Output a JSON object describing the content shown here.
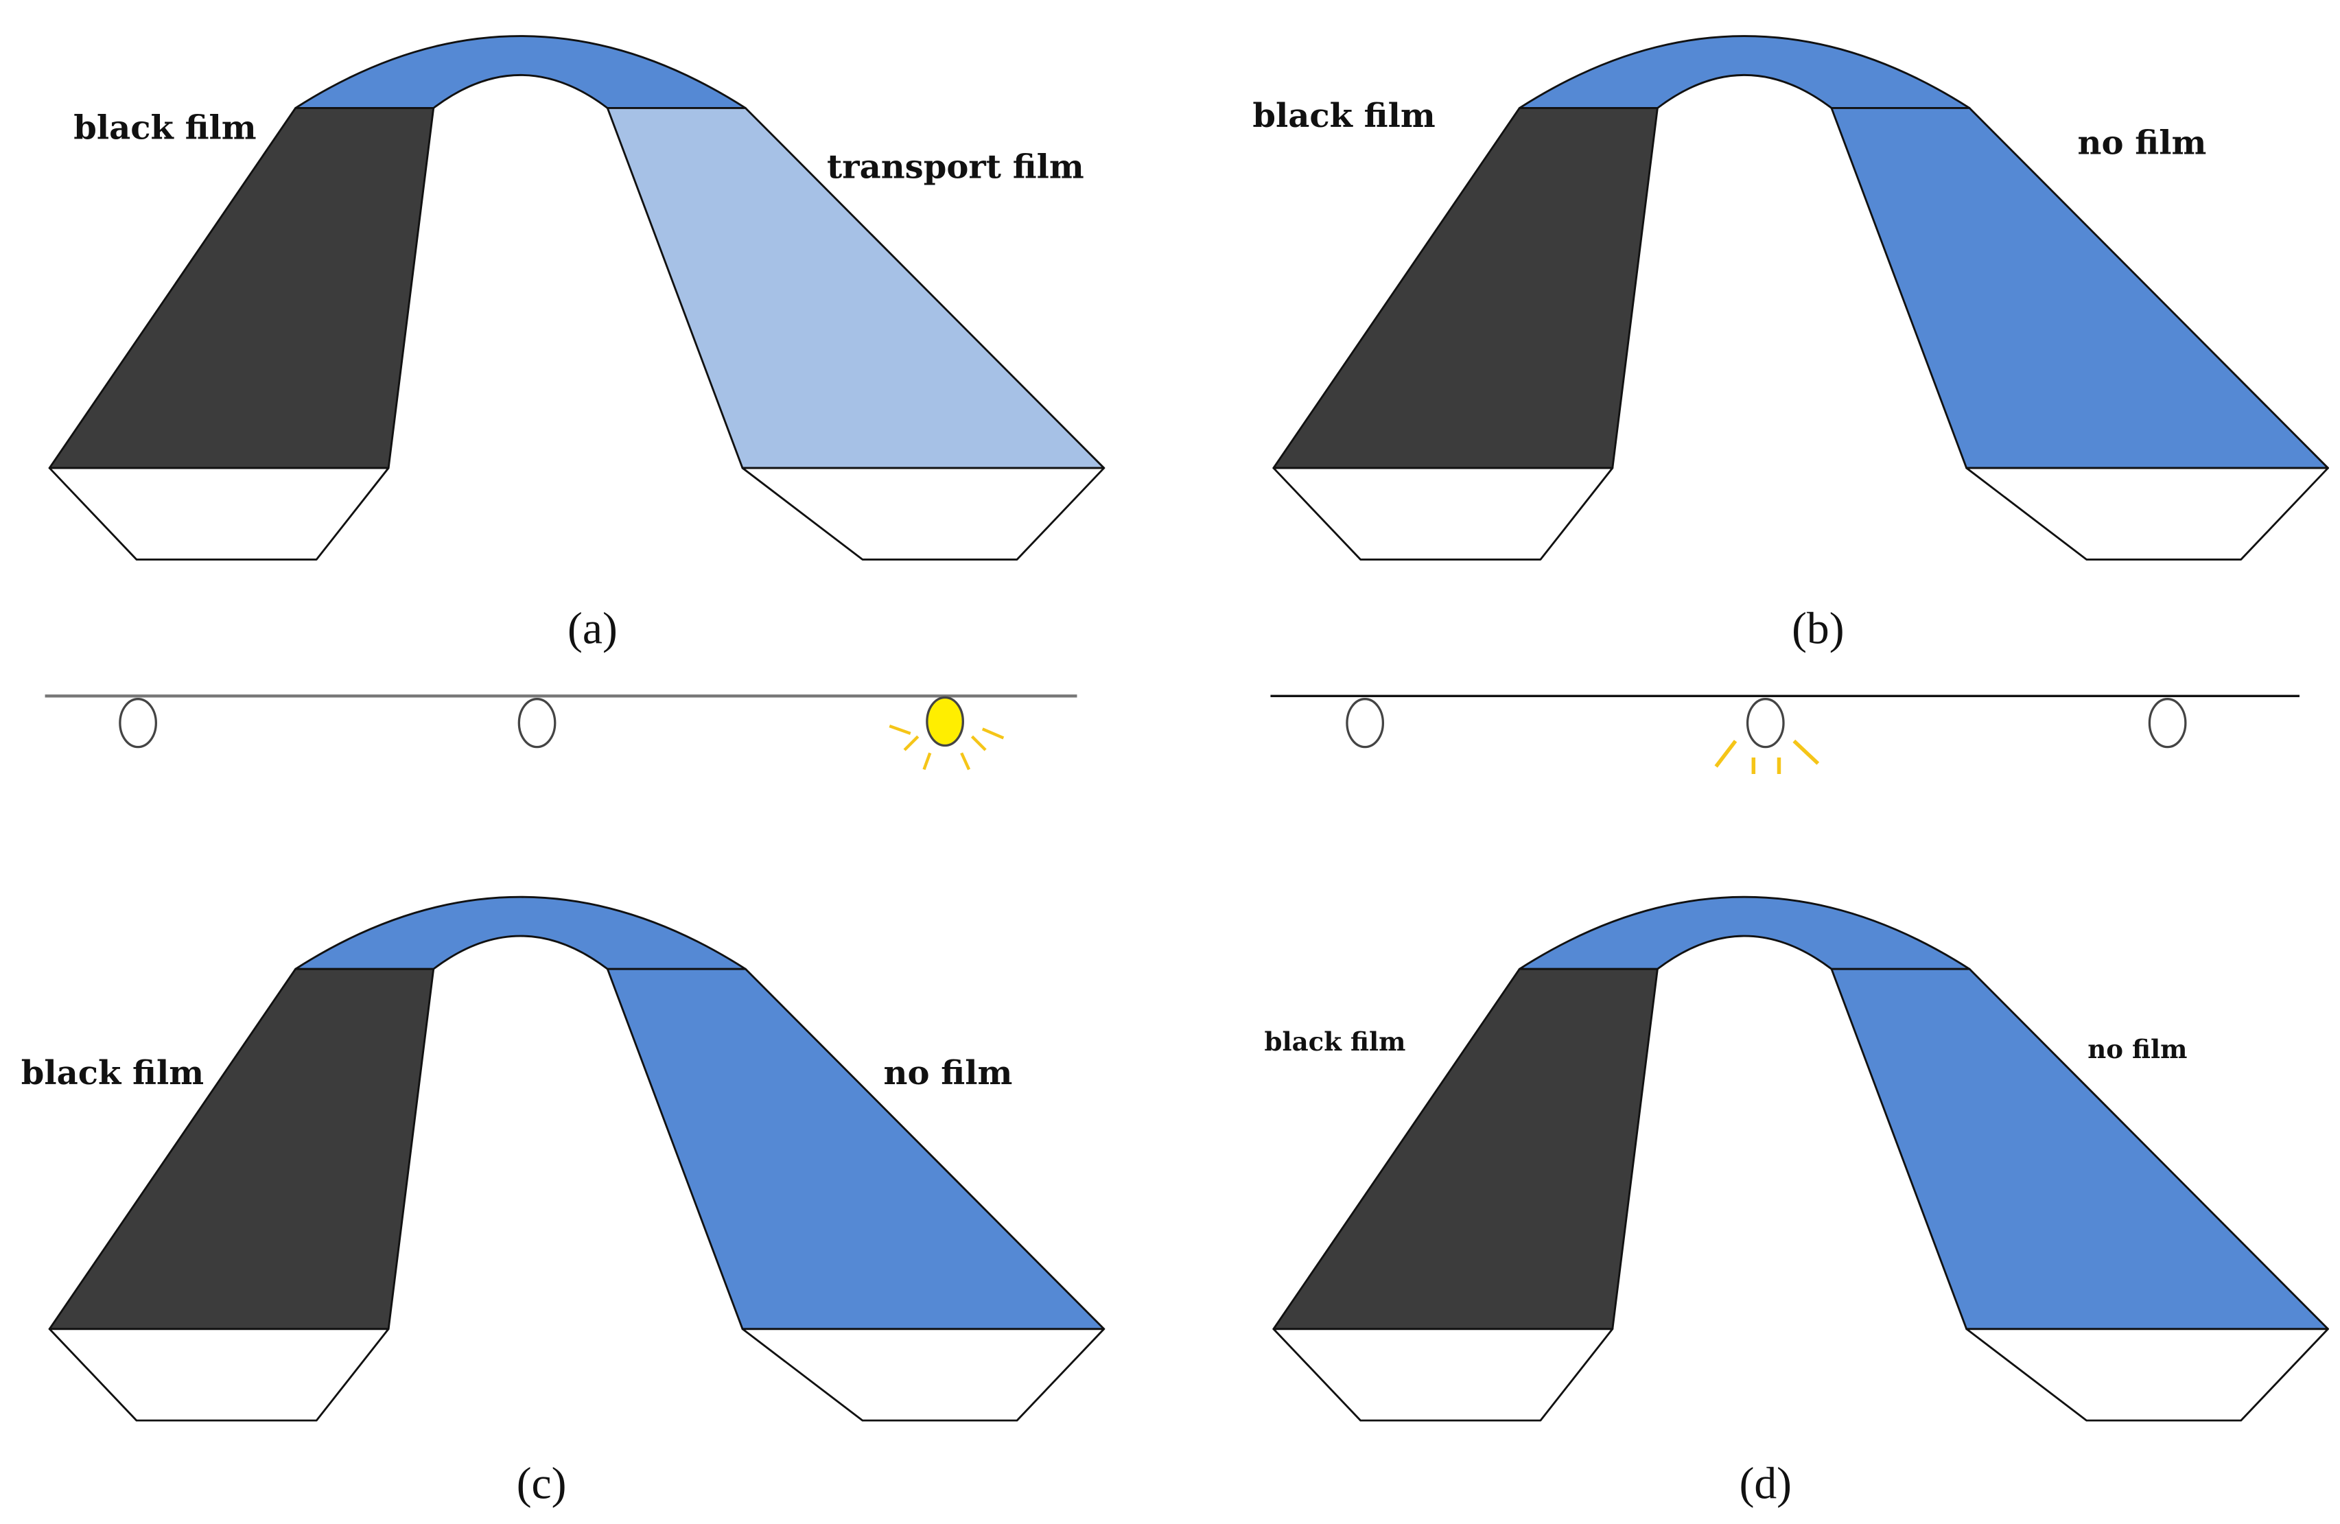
{
  "panels": [
    {
      "caption": "(a)",
      "label_left": "black film",
      "label_right": "transport film",
      "right_color": "#a6c1e6"
    },
    {
      "caption": "(b)",
      "label_left": "black film",
      "label_right": "no film",
      "right_color": "#5589d4"
    },
    {
      "caption": "(c)",
      "label_left": "black film",
      "label_right": "no film",
      "right_color": "#5589d4"
    },
    {
      "caption": "(d)",
      "label_left": "black film",
      "label_right": "no film",
      "right_color": "#5589d4"
    }
  ]
}
